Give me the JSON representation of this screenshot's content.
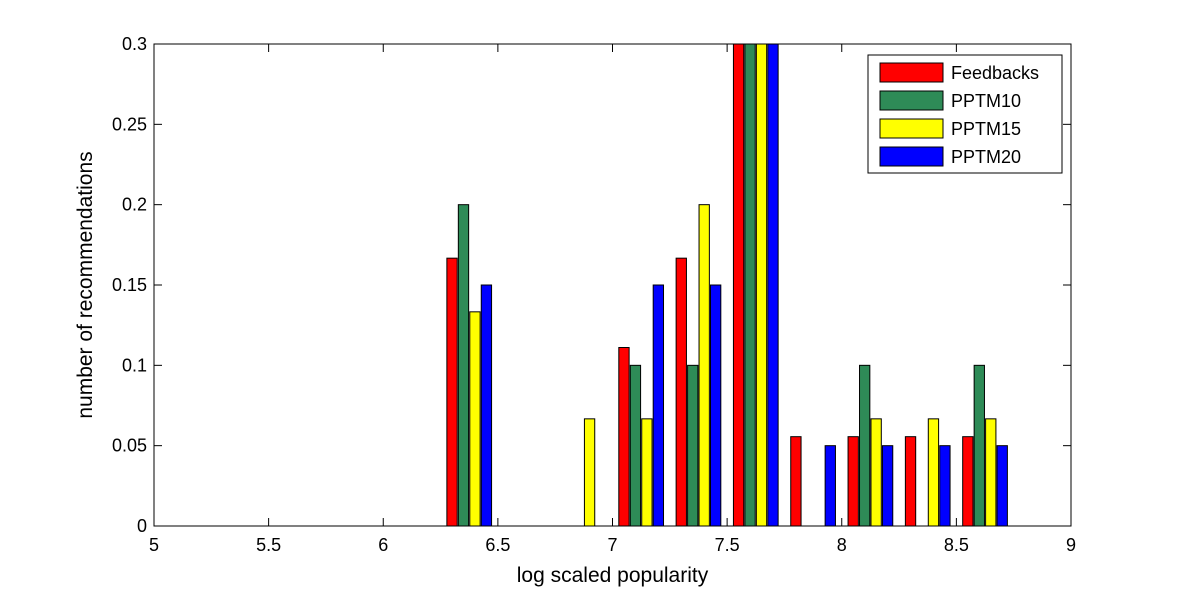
{
  "chart_data": {
    "type": "bar",
    "title": "",
    "xlabel": "log scaled popularity",
    "ylabel": "number of recommendations",
    "xlim": [
      5,
      9
    ],
    "ylim": [
      0,
      0.3
    ],
    "xticks": [
      "5",
      "5.5",
      "6",
      "6.5",
      "7",
      "7.5",
      "8",
      "8.5",
      "9"
    ],
    "yticks": [
      "0",
      "0.05",
      "0.1",
      "0.15",
      "0.2",
      "0.25",
      "0.3"
    ],
    "x": [
      5.125,
      5.375,
      5.625,
      5.875,
      6.125,
      6.375,
      6.625,
      6.875,
      7.125,
      7.375,
      7.625,
      7.875,
      8.125,
      8.375,
      8.625,
      8.875
    ],
    "series": [
      {
        "name": "Feedbacks",
        "color": "#ff0000",
        "values": [
          0,
          0,
          0,
          0,
          0,
          0.1667,
          0,
          0,
          0.1111,
          0.1667,
          0.3,
          0.0556,
          0.0556,
          0.0556,
          0.0556,
          0
        ]
      },
      {
        "name": "PPTM10",
        "color": "#2e8b57",
        "values": [
          0,
          0,
          0,
          0,
          0,
          0.2,
          0,
          0,
          0.1,
          0.1,
          0.3,
          0,
          0.1,
          0,
          0.1,
          0
        ]
      },
      {
        "name": "PPTM15",
        "color": "#ffff00",
        "values": [
          0,
          0,
          0,
          0,
          0,
          0.1333,
          0,
          0.0667,
          0.0667,
          0.2,
          0.3,
          0,
          0.0667,
          0.0667,
          0.0667,
          0
        ]
      },
      {
        "name": "PPTM20",
        "color": "#0000ff",
        "values": [
          0,
          0,
          0,
          0,
          0,
          0.15,
          0,
          0,
          0.15,
          0.15,
          0.3,
          0.05,
          0.05,
          0.05,
          0.05,
          0
        ]
      }
    ],
    "legend_placement": "top-right",
    "grid": false
  }
}
